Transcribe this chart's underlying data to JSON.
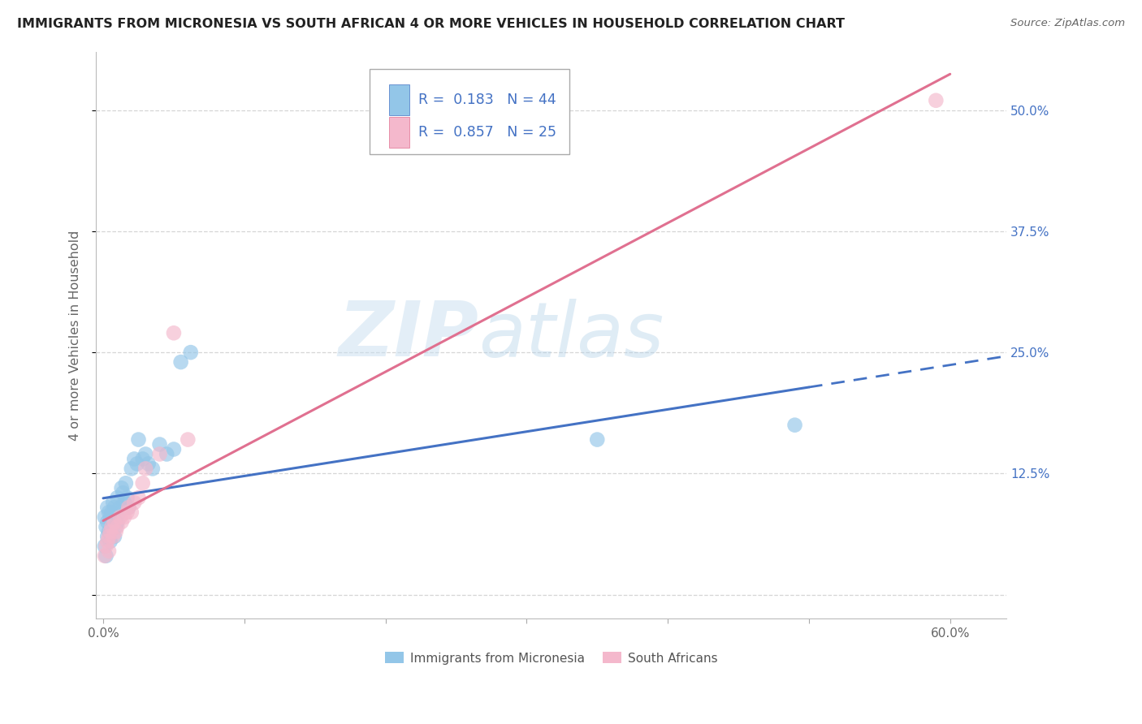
{
  "title": "IMMIGRANTS FROM MICRONESIA VS SOUTH AFRICAN 4 OR MORE VEHICLES IN HOUSEHOLD CORRELATION CHART",
  "source": "Source: ZipAtlas.com",
  "ylabel": "4 or more Vehicles in Household",
  "x_ticks": [
    0.0,
    0.1,
    0.2,
    0.3,
    0.4,
    0.5,
    0.6
  ],
  "x_tick_labels": [
    "0.0%",
    "",
    "",
    "",
    "",
    "",
    "60.0%"
  ],
  "y_ticks": [
    0.0,
    0.125,
    0.25,
    0.375,
    0.5
  ],
  "y_tick_labels": [
    "",
    "12.5%",
    "25.0%",
    "37.5%",
    "50.0%"
  ],
  "xlim": [
    -0.005,
    0.64
  ],
  "ylim": [
    -0.025,
    0.56
  ],
  "blue_R": 0.183,
  "blue_N": 44,
  "pink_R": 0.857,
  "pink_N": 25,
  "blue_color": "#93c6e8",
  "pink_color": "#f4b8cc",
  "blue_line_color": "#4472c4",
  "pink_line_color": "#e07090",
  "watermark_zip": "ZIP",
  "watermark_atlas": "atlas",
  "legend_labels": [
    "Immigrants from Micronesia",
    "South Africans"
  ],
  "blue_scatter_x": [
    0.001,
    0.001,
    0.002,
    0.002,
    0.003,
    0.003,
    0.003,
    0.004,
    0.004,
    0.005,
    0.005,
    0.006,
    0.006,
    0.007,
    0.007,
    0.008,
    0.008,
    0.009,
    0.009,
    0.01,
    0.01,
    0.011,
    0.012,
    0.013,
    0.014,
    0.015,
    0.016,
    0.017,
    0.018,
    0.02,
    0.022,
    0.024,
    0.025,
    0.028,
    0.03,
    0.032,
    0.035,
    0.04,
    0.045,
    0.05,
    0.055,
    0.062,
    0.35,
    0.49
  ],
  "blue_scatter_y": [
    0.05,
    0.08,
    0.04,
    0.07,
    0.06,
    0.075,
    0.09,
    0.065,
    0.085,
    0.055,
    0.08,
    0.07,
    0.085,
    0.075,
    0.095,
    0.06,
    0.09,
    0.07,
    0.08,
    0.075,
    0.1,
    0.085,
    0.09,
    0.11,
    0.105,
    0.095,
    0.115,
    0.1,
    0.09,
    0.13,
    0.14,
    0.135,
    0.16,
    0.14,
    0.145,
    0.135,
    0.13,
    0.155,
    0.145,
    0.15,
    0.24,
    0.25,
    0.16,
    0.175
  ],
  "pink_scatter_x": [
    0.001,
    0.002,
    0.003,
    0.004,
    0.004,
    0.005,
    0.006,
    0.007,
    0.008,
    0.009,
    0.01,
    0.012,
    0.013,
    0.015,
    0.017,
    0.018,
    0.02,
    0.022,
    0.025,
    0.028,
    0.03,
    0.04,
    0.05,
    0.06,
    0.59
  ],
  "pink_scatter_y": [
    0.04,
    0.05,
    0.055,
    0.045,
    0.06,
    0.065,
    0.07,
    0.06,
    0.075,
    0.065,
    0.07,
    0.08,
    0.075,
    0.08,
    0.085,
    0.09,
    0.085,
    0.095,
    0.1,
    0.115,
    0.13,
    0.145,
    0.27,
    0.16,
    0.51
  ],
  "blue_line_x_max": 0.5,
  "pink_line_x_start": 0.0,
  "pink_line_x_end": 0.6
}
